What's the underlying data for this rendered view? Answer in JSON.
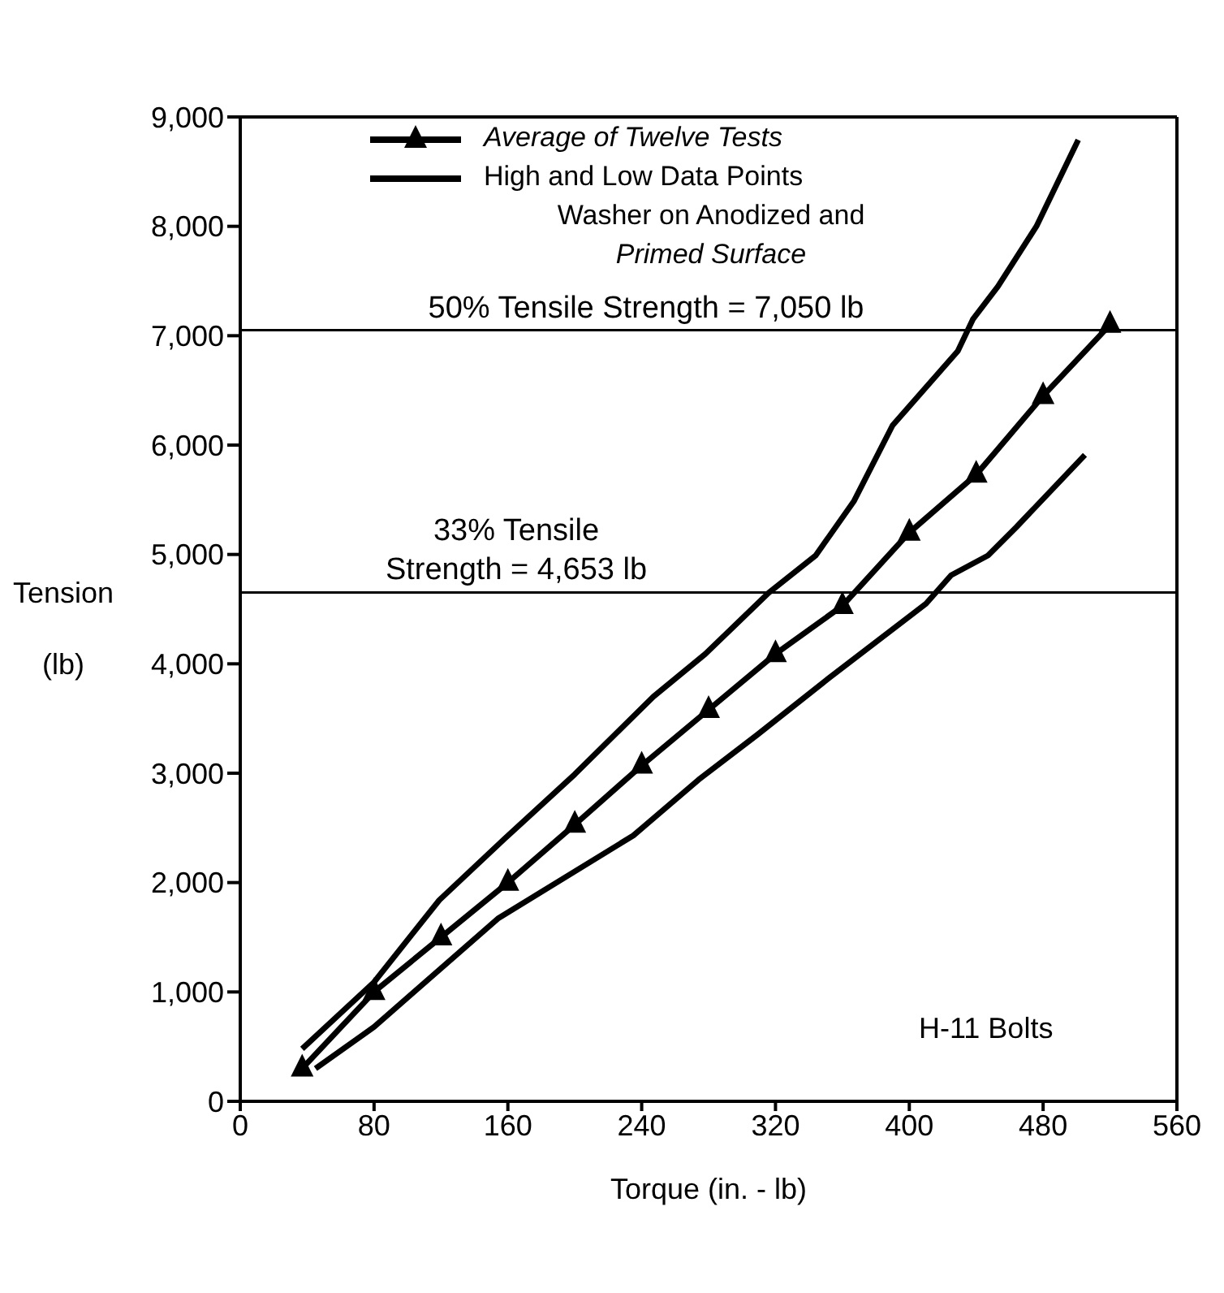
{
  "chart_data": {
    "type": "line",
    "xlabel": "Torque  (in. - lb)",
    "ylabel": "Tension (lb)",
    "xlim": [
      0,
      560
    ],
    "xticks": [
      0,
      80,
      160,
      240,
      320,
      400,
      480,
      560
    ],
    "ylim": [
      0,
      9000
    ],
    "yticks": [
      {
        "value": 0,
        "label": "0"
      },
      {
        "value": 1000,
        "label": "1,000"
      },
      {
        "value": 2000,
        "label": "2,000"
      },
      {
        "value": 3000,
        "label": "3,000"
      },
      {
        "value": 4000,
        "label": "4,000"
      },
      {
        "value": 5000,
        "label": "5,000"
      },
      {
        "value": 6000,
        "label": "6,000"
      },
      {
        "value": 7000,
        "label": "7,000"
      },
      {
        "value": 8000,
        "label": "8,000"
      },
      {
        "value": 9000,
        "label": "9,000"
      }
    ],
    "grid": false,
    "legend": "top",
    "series": [
      {
        "name": "Average of Twelve Tests",
        "color": "#000000",
        "marker": "triangle",
        "x": [
          37,
          80,
          120,
          160,
          200,
          240,
          280,
          320,
          360,
          400,
          440,
          480,
          520
        ],
        "values": [
          300,
          1000,
          1500,
          2000,
          2530,
          3070,
          3580,
          4090,
          4530,
          5200,
          5730,
          6450,
          7100
        ]
      },
      {
        "name": "High and Low Data Points",
        "color": "#000000",
        "marker": "none",
        "x": [
          37,
          80,
          119,
          158,
          200,
          247,
          278,
          316,
          344,
          367,
          390,
          429,
          438,
          453,
          476,
          501
        ],
        "values": [
          480,
          1090,
          1840,
          2400,
          2990,
          3700,
          4090,
          4650,
          4990,
          5490,
          6180,
          6860,
          7150,
          7450,
          8000,
          8790
        ]
      },
      {
        "color": "#000000",
        "marker": "none",
        "x": [
          45,
          80,
          154,
          235,
          274,
          309,
          352,
          410,
          425,
          447,
          464,
          505
        ],
        "values": [
          300,
          680,
          1670,
          2430,
          2940,
          3350,
          3870,
          4550,
          4810,
          4990,
          5250,
          5910
        ]
      }
    ],
    "ref_lines": [
      {
        "axis": "y",
        "value": 7050,
        "label": "50% Tensile Strength = 7,050 lb",
        "color": "#000000"
      },
      {
        "axis": "y",
        "value": 4653,
        "label": "33% Tensile\nStrength = 4,653 lb",
        "color": "#000000"
      }
    ],
    "annotations": [
      "Washer on Anodized and\nPrimed Surface",
      "H-11 Bolts"
    ]
  }
}
